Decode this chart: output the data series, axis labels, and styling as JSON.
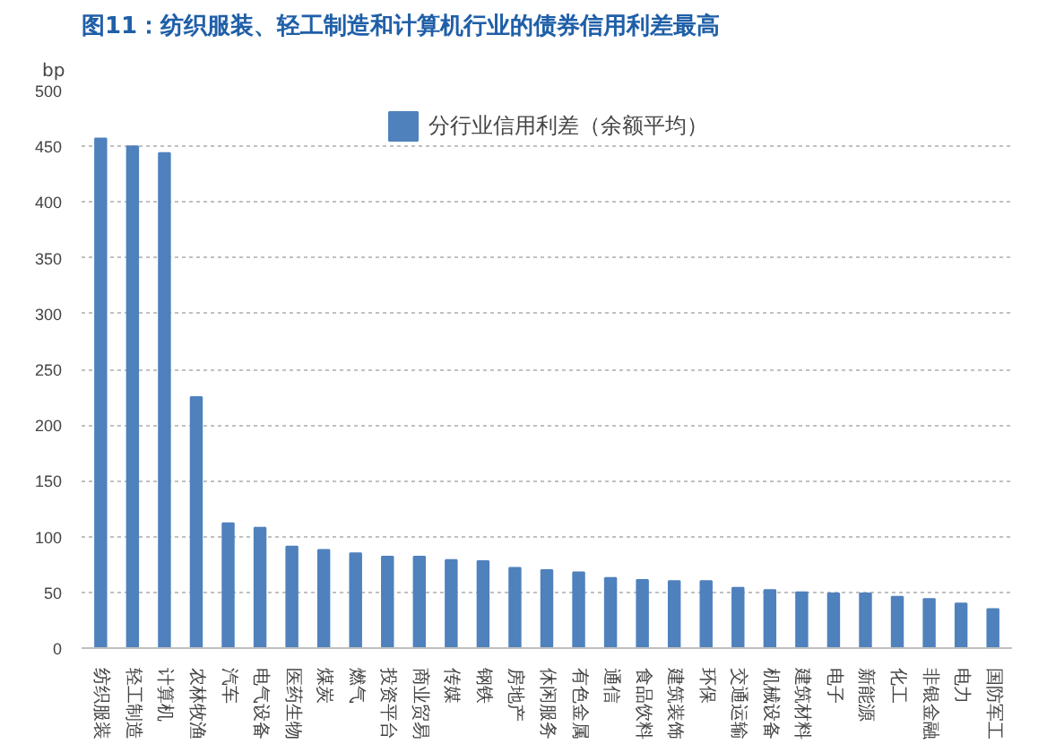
{
  "chart_data": {
    "type": "bar",
    "title": "图11：纺织服装、轻工制造和计算机行业的债券信用利差最高",
    "ylabel": "bp",
    "categories": [
      "纺织服装",
      "轻工制造",
      "计算机",
      "农林牧渔",
      "汽车",
      "电气设备",
      "医药生物",
      "煤炭",
      "燃气",
      "投资平台",
      "商业贸易",
      "传媒",
      "钢铁",
      "房地产",
      "休闲服务",
      "有色金属",
      "通信",
      "食品饮料",
      "建筑装饰",
      "环保",
      "交通运输",
      "机械设备",
      "建筑材料",
      "电子",
      "新能源",
      "化工",
      "非银金融",
      "电力",
      "国防军工"
    ],
    "series": [
      {
        "name": "分行业信用利差（余额平均）",
        "color": "#4f81bd",
        "values": [
          457,
          450,
          444,
          225,
          112,
          108,
          91,
          88,
          85,
          82,
          82,
          79,
          78,
          72,
          70,
          68,
          63,
          61,
          60,
          60,
          54,
          52,
          50,
          49,
          49,
          46,
          44,
          40,
          35
        ]
      }
    ],
    "ylim": [
      0,
      500
    ],
    "yticks": [
      0,
      50,
      100,
      150,
      200,
      250,
      300,
      350,
      400,
      450,
      500
    ],
    "grid": "y",
    "legend": "top"
  }
}
